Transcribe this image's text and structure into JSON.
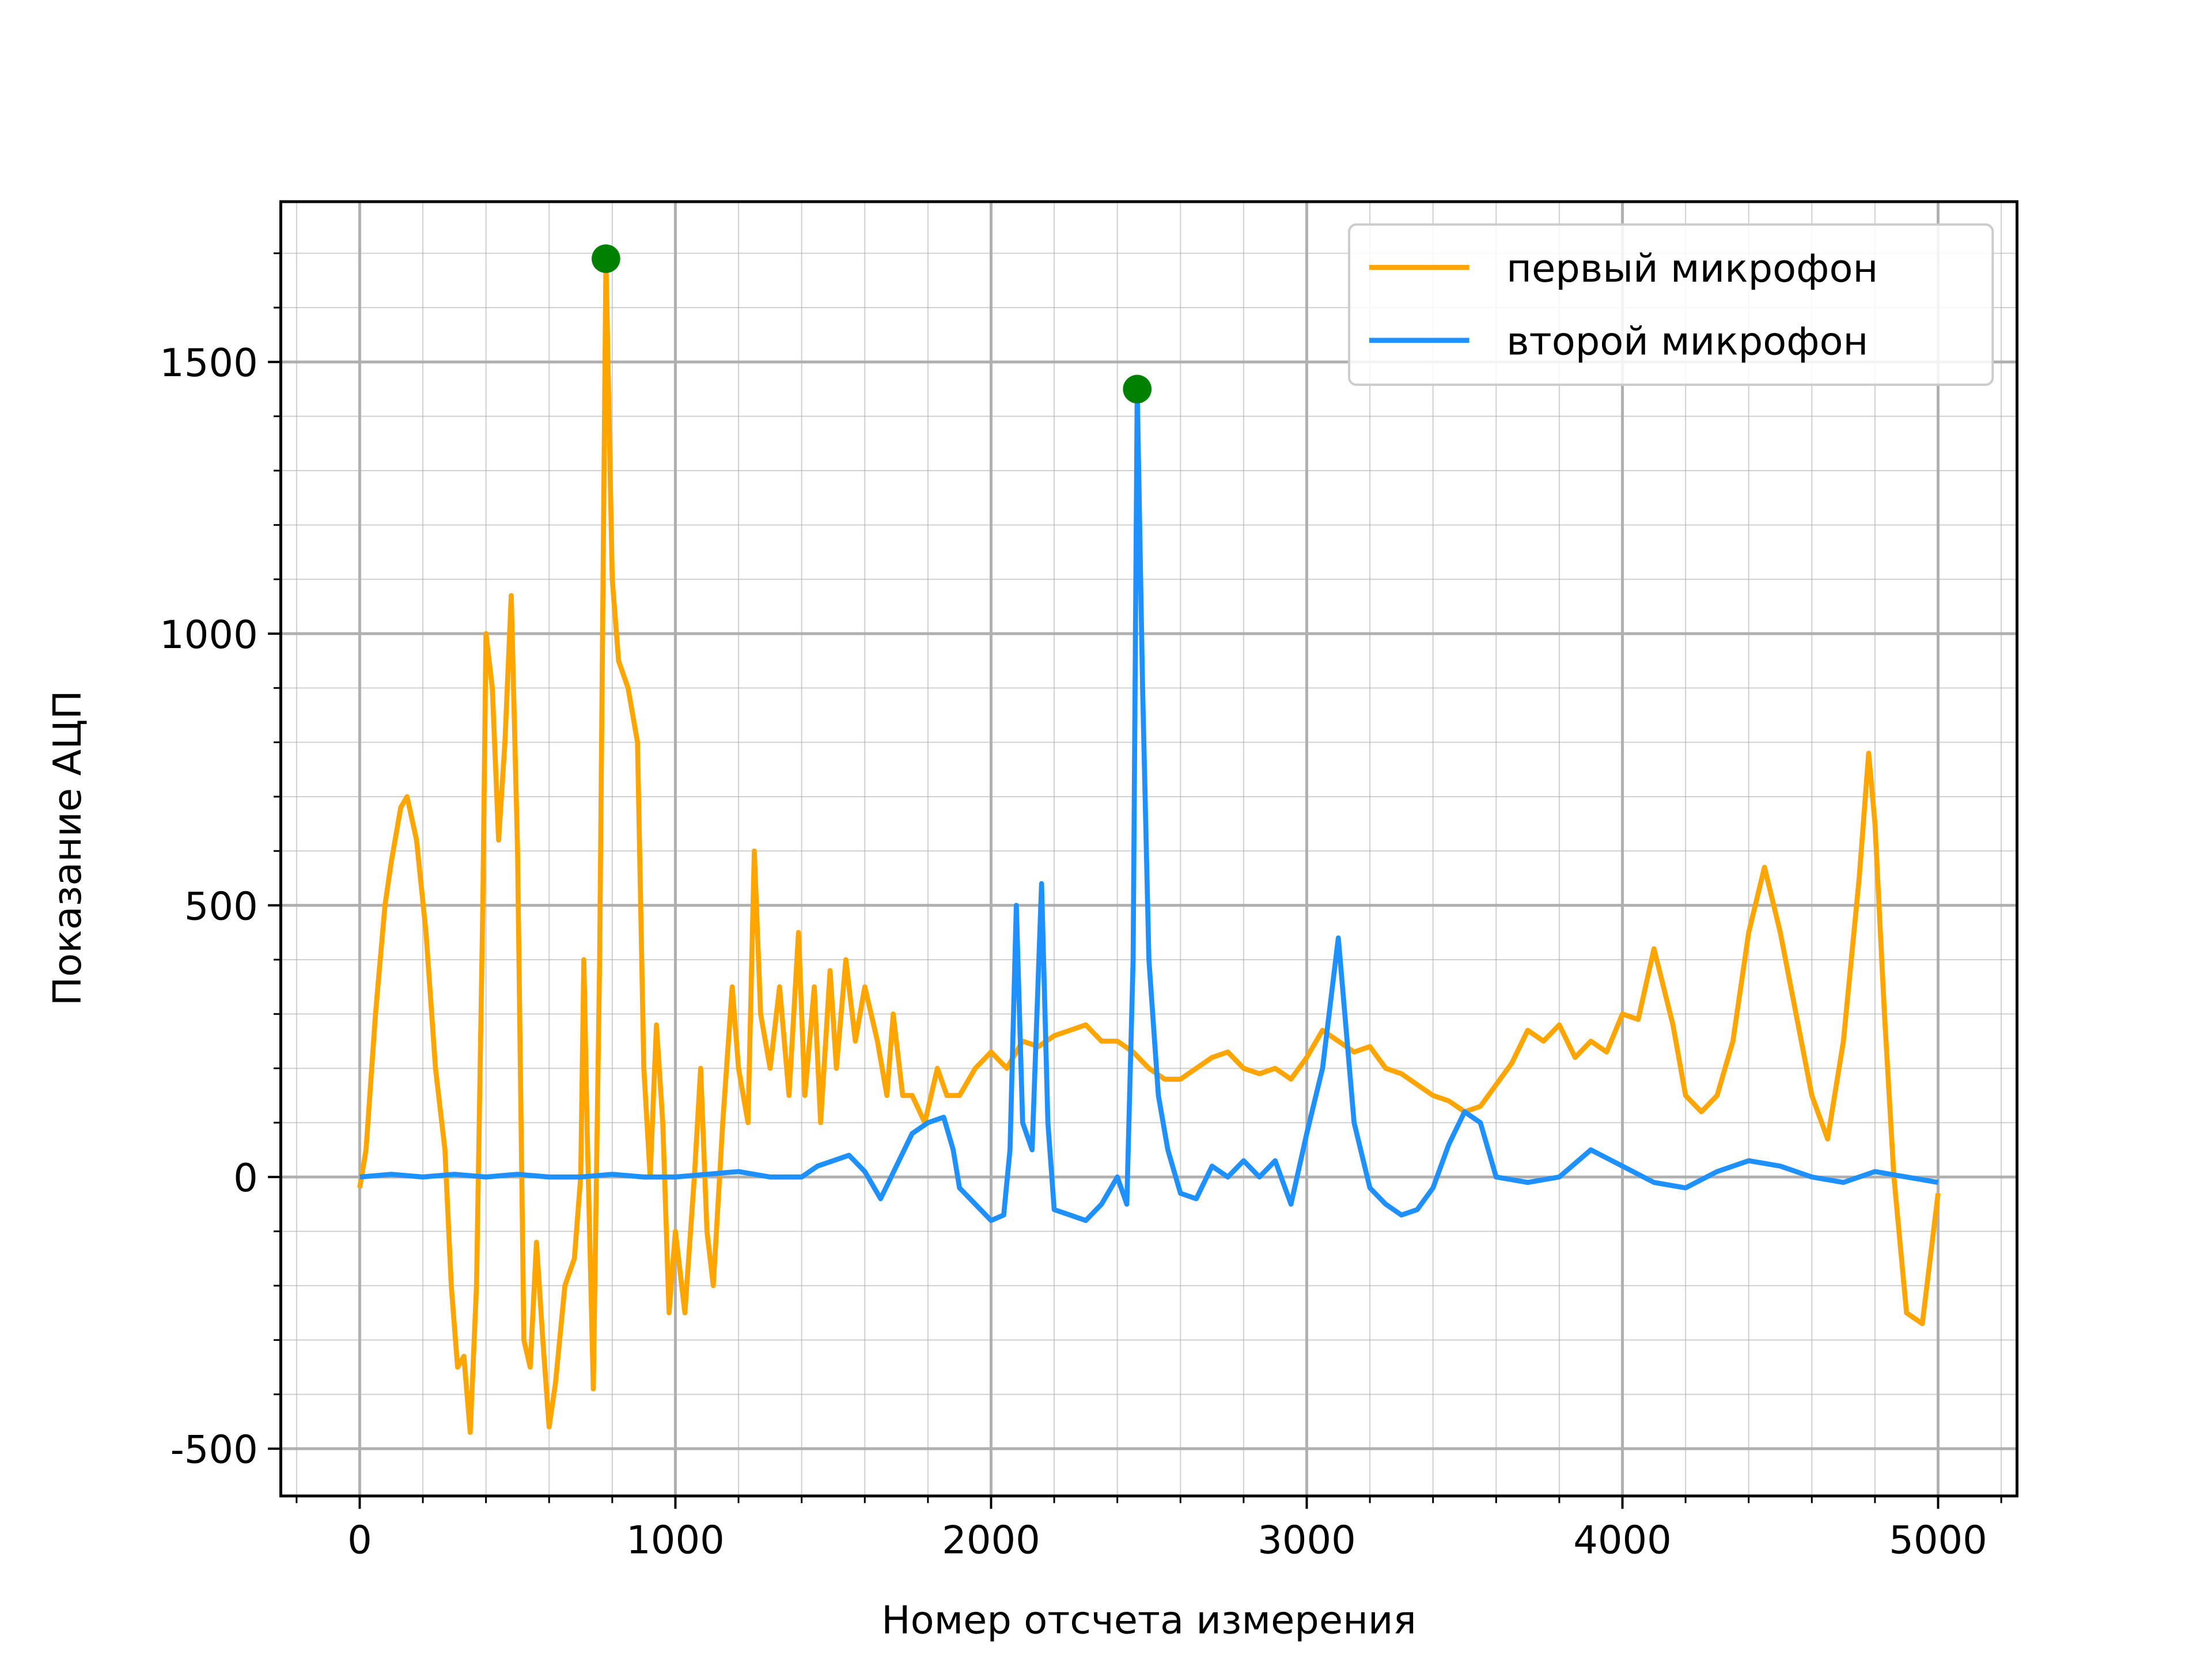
{
  "chart_data": {
    "type": "line",
    "xlabel": "Номер отсчета измерения",
    "ylabel": "Показание АЦП",
    "xlim": [
      -250,
      5250
    ],
    "ylim": [
      -587,
      1795
    ],
    "xticks": [
      0,
      1000,
      2000,
      3000,
      4000,
      5000
    ],
    "yticks": [
      -500,
      0,
      500,
      1000,
      1500
    ],
    "xminorticks": [
      -200,
      200,
      400,
      600,
      800,
      1200,
      1400,
      1600,
      1800,
      2200,
      2400,
      2600,
      2800,
      3200,
      3400,
      3600,
      3800,
      4200,
      4400,
      4600,
      4800,
      5200
    ],
    "yminorticks": [
      -400,
      -300,
      -200,
      -100,
      100,
      200,
      300,
      400,
      600,
      700,
      800,
      900,
      1100,
      1200,
      1300,
      1400,
      1600,
      1700
    ],
    "grid": true,
    "legend": "upper right",
    "series": [
      {
        "name": "первый микрофон",
        "color": "orange",
        "x": [
          0,
          20,
          50,
          80,
          100,
          130,
          150,
          180,
          210,
          240,
          270,
          290,
          310,
          330,
          350,
          370,
          390,
          400,
          420,
          440,
          460,
          480,
          500,
          520,
          540,
          560,
          580,
          600,
          620,
          650,
          680,
          700,
          710,
          720,
          740,
          760,
          780,
          800,
          820,
          850,
          880,
          900,
          920,
          940,
          960,
          980,
          1000,
          1030,
          1060,
          1080,
          1100,
          1120,
          1150,
          1180,
          1200,
          1230,
          1250,
          1270,
          1300,
          1330,
          1360,
          1390,
          1410,
          1440,
          1460,
          1490,
          1510,
          1540,
          1570,
          1600,
          1640,
          1670,
          1690,
          1720,
          1750,
          1790,
          1830,
          1860,
          1900,
          1950,
          2000,
          2050,
          2100,
          2150,
          2200,
          2250,
          2300,
          2350,
          2400,
          2450,
          2500,
          2550,
          2600,
          2650,
          2700,
          2750,
          2800,
          2850,
          2900,
          2950,
          3000,
          3050,
          3100,
          3150,
          3200,
          3250,
          3300,
          3350,
          3400,
          3450,
          3500,
          3550,
          3600,
          3650,
          3700,
          3750,
          3800,
          3850,
          3900,
          3950,
          4000,
          4050,
          4100,
          4130,
          4160,
          4200,
          4250,
          4300,
          4350,
          4400,
          4450,
          4500,
          4550,
          4600,
          4650,
          4700,
          4750,
          4780,
          4800,
          4830,
          4860,
          4900,
          4950,
          5000
        ],
        "values": [
          -20,
          50,
          300,
          500,
          580,
          680,
          700,
          620,
          450,
          200,
          50,
          -200,
          -350,
          -330,
          -470,
          -200,
          500,
          1000,
          900,
          620,
          800,
          1070,
          600,
          -300,
          -350,
          -120,
          -300,
          -460,
          -380,
          -200,
          -150,
          0,
          400,
          100,
          -390,
          400,
          1690,
          1100,
          950,
          900,
          800,
          200,
          0,
          280,
          100,
          -250,
          -100,
          -250,
          0,
          200,
          -100,
          -200,
          100,
          350,
          200,
          100,
          600,
          300,
          200,
          350,
          150,
          450,
          150,
          350,
          100,
          380,
          200,
          400,
          250,
          350,
          250,
          150,
          300,
          150,
          150,
          100,
          200,
          150,
          150,
          200,
          230,
          200,
          250,
          240,
          260,
          270,
          280,
          250,
          250,
          230,
          200,
          180,
          180,
          200,
          220,
          230,
          200,
          190,
          200,
          180,
          220,
          270,
          250,
          230,
          240,
          200,
          190,
          170,
          150,
          140,
          120,
          130,
          170,
          210,
          270,
          250,
          280,
          220,
          250,
          230,
          300,
          290,
          420,
          350,
          280,
          150,
          120,
          150,
          250,
          450,
          570,
          450,
          300,
          150,
          70,
          250,
          550,
          780,
          650,
          300,
          0,
          -250,
          -270,
          -30
        ]
      },
      {
        "name": "второй микрофон",
        "color": "#1e90ff",
        "x": [
          0,
          100,
          200,
          300,
          400,
          500,
          600,
          700,
          800,
          900,
          1000,
          1100,
          1200,
          1300,
          1400,
          1450,
          1500,
          1550,
          1600,
          1650,
          1700,
          1750,
          1800,
          1850,
          1880,
          1900,
          1950,
          2000,
          2040,
          2060,
          2080,
          2100,
          2130,
          2160,
          2180,
          2200,
          2250,
          2300,
          2350,
          2400,
          2430,
          2450,
          2463,
          2480,
          2500,
          2530,
          2560,
          2600,
          2650,
          2700,
          2750,
          2800,
          2850,
          2900,
          2950,
          3000,
          3050,
          3100,
          3150,
          3200,
          3250,
          3300,
          3350,
          3400,
          3450,
          3500,
          3550,
          3600,
          3700,
          3800,
          3900,
          4000,
          4100,
          4200,
          4300,
          4400,
          4500,
          4600,
          4700,
          4800,
          4900,
          5000
        ],
        "values": [
          0,
          5,
          0,
          5,
          0,
          5,
          0,
          0,
          5,
          0,
          0,
          5,
          10,
          0,
          0,
          20,
          30,
          40,
          10,
          -40,
          20,
          80,
          100,
          110,
          50,
          -20,
          -50,
          -80,
          -70,
          50,
          500,
          100,
          50,
          540,
          100,
          -60,
          -70,
          -80,
          -50,
          0,
          -50,
          400,
          1450,
          900,
          400,
          150,
          50,
          -30,
          -40,
          20,
          0,
          30,
          0,
          30,
          -50,
          80,
          200,
          440,
          100,
          -20,
          -50,
          -70,
          -60,
          -20,
          60,
          120,
          100,
          0,
          -10,
          0,
          50,
          20,
          -10,
          -20,
          10,
          30,
          20,
          0,
          -10,
          10,
          0,
          -10
        ]
      }
    ],
    "markers": {
      "color": "green",
      "x": [
        780,
        2463
      ],
      "y": [
        1690,
        1450
      ]
    }
  }
}
